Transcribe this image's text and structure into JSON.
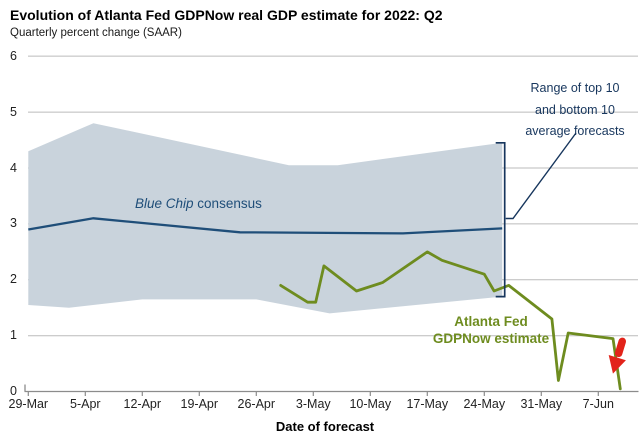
{
  "header": {
    "title": "Evolution of Atlanta Fed GDPNow real GDP estimate for 2022: Q2",
    "subtitle": "Quarterly percent change (SAAR)"
  },
  "labels": {
    "blue_chip": {
      "italic": "Blue Chip",
      "rest": " consensus"
    },
    "gdpnow": {
      "line1": "Atlanta Fed",
      "line2": "GDPNow estimate"
    },
    "range_annotation": {
      "line1": "Range of top 10",
      "line2": "and bottom 10",
      "line3": "average forecasts"
    }
  },
  "chart_data": {
    "type": "line",
    "title": "Evolution of Atlanta Fed GDPNow real GDP estimate for 2022: Q2",
    "subtitle": "Quarterly percent change (SAAR)",
    "xlabel": "Date of forecast",
    "ylabel": "Quarterly percent change (SAAR)",
    "ylim": [
      0,
      6
    ],
    "yticks": [
      0,
      1,
      2,
      3,
      4,
      5,
      6
    ],
    "grid": "horizontal",
    "xticks": [
      {
        "label": "29-Mar",
        "day": 0
      },
      {
        "label": "5-Apr",
        "day": 7
      },
      {
        "label": "12-Apr",
        "day": 14
      },
      {
        "label": "19-Apr",
        "day": 21
      },
      {
        "label": "26-Apr",
        "day": 28
      },
      {
        "label": "3-May",
        "day": 35
      },
      {
        "label": "10-May",
        "day": 42
      },
      {
        "label": "17-May",
        "day": 49
      },
      {
        "label": "24-May",
        "day": 56
      },
      {
        "label": "31-May",
        "day": 63
      },
      {
        "label": "7-Jun",
        "day": 70
      }
    ],
    "colors": {
      "band": "#c9d3dc",
      "consensus": "#1f4e79",
      "gdpnow": "#6e8c1f",
      "annotation": "#17365d",
      "arrow_red": "#e2231a",
      "gridline": "#bbbbbb",
      "axis": "#8c8c8c"
    },
    "band": {
      "name": "Range of top 10 and bottom 10 average forecasts",
      "start_date": "29-Mar",
      "end_date": "26-May",
      "top": [
        {
          "day": 0,
          "value": 4.3
        },
        {
          "day": 8,
          "value": 4.8
        },
        {
          "day": 32,
          "value": 4.05
        },
        {
          "day": 38,
          "value": 4.05
        },
        {
          "day": 58.2,
          "value": 4.45
        }
      ],
      "bottom": [
        {
          "day": 0,
          "value": 1.55
        },
        {
          "day": 5,
          "value": 1.5
        },
        {
          "day": 14,
          "value": 1.65
        },
        {
          "day": 28,
          "value": 1.65
        },
        {
          "day": 37,
          "value": 1.4
        },
        {
          "day": 58.2,
          "value": 1.7
        }
      ]
    },
    "series": [
      {
        "name": "Blue Chip consensus",
        "points": [
          {
            "day": 0,
            "value": 2.9
          },
          {
            "day": 8,
            "value": 3.1
          },
          {
            "day": 26,
            "value": 2.85
          },
          {
            "day": 46,
            "value": 2.83
          },
          {
            "day": 58.2,
            "value": 2.92
          }
        ]
      },
      {
        "name": "Atlanta Fed GDPNow estimate",
        "points": [
          {
            "date": "29-Apr",
            "day": 31,
            "value": 1.9
          },
          {
            "date": "2-May",
            "day": 34.3,
            "value": 1.6
          },
          {
            "date": "3-May",
            "day": 35.3,
            "value": 1.6
          },
          {
            "date": "4-May",
            "day": 36.3,
            "value": 2.25
          },
          {
            "date": "9-May",
            "day": 40.3,
            "value": 1.8
          },
          {
            "date": "12-May",
            "day": 43.5,
            "value": 1.95
          },
          {
            "date": "17-May",
            "day": 49,
            "value": 2.5
          },
          {
            "date": "19-May",
            "day": 50.8,
            "value": 2.35
          },
          {
            "date": "24-May",
            "day": 56,
            "value": 2.1
          },
          {
            "date": "25-May",
            "day": 57.2,
            "value": 1.8
          },
          {
            "date": "27-May",
            "day": 59,
            "value": 1.9
          },
          {
            "date": "1-Jun",
            "day": 64.3,
            "value": 1.3
          },
          {
            "date": "2-Jun",
            "day": 65.1,
            "value": 0.2
          },
          {
            "date": "3-Jun",
            "day": 66.3,
            "value": 1.05
          },
          {
            "date": "9-Jun",
            "day": 71.8,
            "value": 0.95
          },
          {
            "date": "10-Jun",
            "day": 72.7,
            "value": 0.05
          }
        ]
      }
    ],
    "range_bracket": {
      "day": 58.5,
      "from_value": 4.45,
      "to_value": 1.7
    },
    "final_move_arrow": {
      "direction": "down",
      "color": "#e2231a"
    }
  }
}
